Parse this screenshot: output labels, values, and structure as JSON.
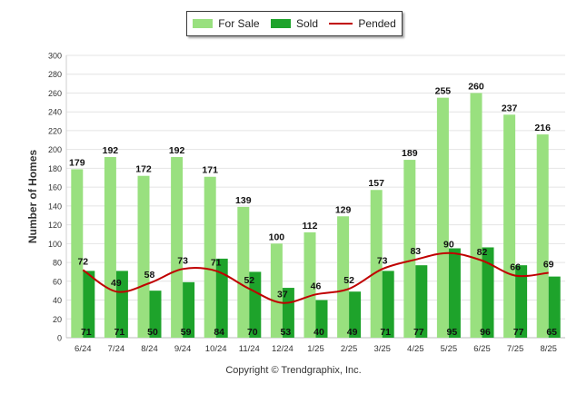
{
  "chart_data": {
    "type": "bar",
    "ylabel": "Number of Homes",
    "ylim": [
      0,
      300
    ],
    "yticks": [
      0,
      20,
      40,
      60,
      80,
      100,
      120,
      140,
      160,
      180,
      200,
      220,
      240,
      260,
      280,
      300
    ],
    "categories": [
      "6/24",
      "7/24",
      "8/24",
      "9/24",
      "10/24",
      "11/24",
      "12/24",
      "1/25",
      "2/25",
      "3/25",
      "4/25",
      "5/25",
      "6/25",
      "7/25",
      "8/25"
    ],
    "series": [
      {
        "name": "For Sale",
        "kind": "bar",
        "color": "#99e07f",
        "values": [
          179,
          192,
          172,
          192,
          171,
          139,
          100,
          112,
          129,
          157,
          189,
          255,
          260,
          237,
          216
        ]
      },
      {
        "name": "Sold",
        "kind": "bar",
        "color": "#1ea32b",
        "values": [
          71,
          71,
          50,
          59,
          84,
          70,
          53,
          40,
          49,
          71,
          77,
          95,
          96,
          77,
          65
        ]
      },
      {
        "name": "Pended",
        "kind": "line",
        "color": "#c00000",
        "values": [
          72,
          49,
          58,
          73,
          71,
          52,
          37,
          46,
          52,
          73,
          83,
          90,
          82,
          66,
          69
        ]
      }
    ],
    "grid": true,
    "legend_position": "top-center"
  },
  "legend": {
    "items": [
      {
        "label": "For Sale",
        "color": "#99e07f",
        "kind": "bar"
      },
      {
        "label": "Sold",
        "color": "#1ea32b",
        "kind": "bar"
      },
      {
        "label": "Pended",
        "color": "#c00000",
        "kind": "line"
      }
    ]
  },
  "footer": {
    "copyright": "Copyright © Trendgraphix, Inc."
  }
}
